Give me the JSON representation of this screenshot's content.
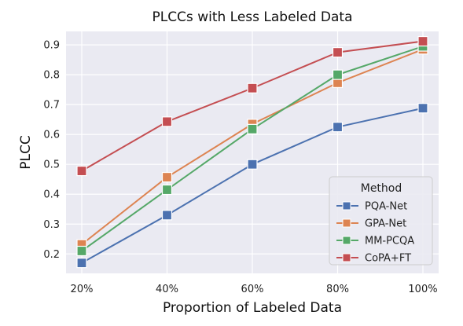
{
  "chart_data": {
    "type": "line",
    "title": "PLCCs with Less Labeled Data",
    "xlabel": "Proportion of Labeled Data",
    "ylabel": "PLCC",
    "categories": [
      "20%",
      "40%",
      "60%",
      "80%",
      "100%"
    ],
    "ylim": [
      0.135,
      0.945
    ],
    "yticks": [
      "0.2",
      "0.3",
      "0.4",
      "0.5",
      "0.6",
      "0.7",
      "0.8",
      "0.9"
    ],
    "grid": true,
    "legend": {
      "title": "Method",
      "placement": "lower-right"
    },
    "series": [
      {
        "name": "PQA-Net",
        "color": "#4C72B0",
        "values": [
          0.17,
          0.33,
          0.5,
          0.625,
          0.688
        ]
      },
      {
        "name": "GPA-Net",
        "color": "#DD8452",
        "values": [
          0.232,
          0.457,
          0.635,
          0.773,
          0.885
        ]
      },
      {
        "name": "MM-PCQA",
        "color": "#55A868",
        "values": [
          0.21,
          0.415,
          0.618,
          0.8,
          0.895
        ]
      },
      {
        "name": "CoPA+FT",
        "color": "#C44E52",
        "values": [
          0.478,
          0.643,
          0.755,
          0.875,
          0.912
        ]
      }
    ]
  }
}
